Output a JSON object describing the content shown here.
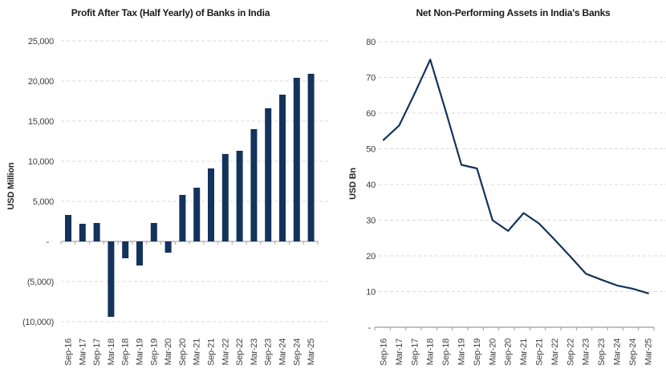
{
  "page": {
    "background": "#FFFFFF"
  },
  "chart_data": [
    {
      "type": "bar",
      "title": "Profit After Tax (Half Yearly) of Banks in India",
      "ylabel": "USD Million",
      "xlabel": "",
      "categories": [
        "Sep-16",
        "Mar-17",
        "Sep-17",
        "Mar-18",
        "Sep-18",
        "Mar-19",
        "Sep-19",
        "Mar-20",
        "Sep-20",
        "Mar-21",
        "Sep-21",
        "Mar-22",
        "Sep-22",
        "Mar-23",
        "Sep-23",
        "Mar-24",
        "Sep-24",
        "Mar-25"
      ],
      "values": [
        3300,
        2200,
        2300,
        -9400,
        -2100,
        -3000,
        2300,
        -1400,
        5800,
        6700,
        9100,
        10900,
        11300,
        14000,
        16600,
        18300,
        20400,
        20900
      ],
      "ylim": [
        -10000,
        25000
      ],
      "yticks": [
        {
          "v": 25000,
          "label": "25,000"
        },
        {
          "v": 20000,
          "label": "20,000"
        },
        {
          "v": 15000,
          "label": "15,000"
        },
        {
          "v": 10000,
          "label": "10,000"
        },
        {
          "v": 5000,
          "label": "5,000"
        },
        {
          "v": 0,
          "label": "-"
        },
        {
          "v": -5000,
          "label": "(5,000)"
        },
        {
          "v": -10000,
          "label": "(10,000)"
        }
      ],
      "grid": "dashed-horizontal",
      "legend": "none",
      "color": "#14335C",
      "grid_color": "#D9D9D9",
      "axis_color": "#A8A8A8"
    },
    {
      "type": "line",
      "title": "Net Non-Performing Assets in India's Banks",
      "ylabel": "USD Bn",
      "xlabel": "",
      "categories": [
        "Sep-16",
        "Mar-17",
        "Sep-17",
        "Mar-18",
        "Sep-18",
        "Mar-19",
        "Sep-19",
        "Mar-20",
        "Sep-20",
        "Mar-21",
        "Sep-21",
        "Mar-22",
        "Sep-22",
        "Mar-23",
        "Sep-23",
        "Mar-24",
        "Sep-24",
        "Mar-25"
      ],
      "values": [
        52.5,
        56.5,
        65.5,
        75,
        60.5,
        45.5,
        44.5,
        30,
        27,
        32,
        29,
        24.5,
        19.8,
        15,
        13.3,
        11.7,
        10.8,
        9.5
      ],
      "ylim": [
        0,
        80
      ],
      "yticks": [
        {
          "v": 80,
          "label": "80"
        },
        {
          "v": 70,
          "label": "70"
        },
        {
          "v": 60,
          "label": "60"
        },
        {
          "v": 50,
          "label": "50"
        },
        {
          "v": 40,
          "label": "40"
        },
        {
          "v": 30,
          "label": "30"
        },
        {
          "v": 20,
          "label": "20"
        },
        {
          "v": 10,
          "label": "10"
        },
        {
          "v": 0,
          "label": "-"
        }
      ],
      "grid": "dashed-horizontal",
      "legend": "none",
      "color": "#14335C",
      "grid_color": "#D9D9D9",
      "axis_color": "#9B9B9B"
    }
  ]
}
